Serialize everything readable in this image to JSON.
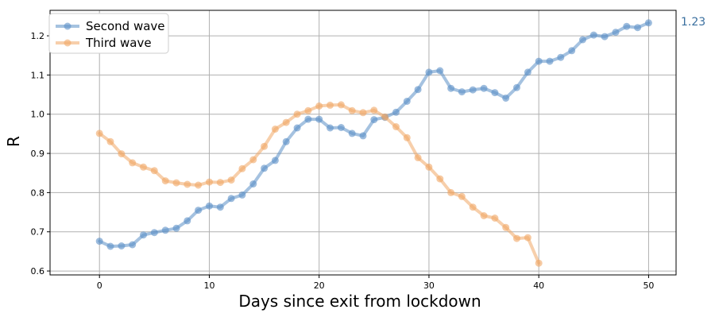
{
  "chart_data": {
    "type": "line",
    "title": "",
    "xlabel": "Days since exit from lockdown",
    "ylabel": "R",
    "xlim": [
      -4.5,
      52.5
    ],
    "ylim": [
      0.59,
      1.265
    ],
    "xticks": [
      0,
      10,
      20,
      30,
      40,
      50
    ],
    "yticks": [
      0.6,
      0.7,
      0.8,
      0.9,
      1.0,
      1.1,
      1.2
    ],
    "grid": true,
    "legend": "top-left",
    "annotation": {
      "text": "1.23",
      "color": "#3a6f9f"
    },
    "series": [
      {
        "name": "Second wave",
        "color": "#5b8fc7",
        "x": [
          0,
          1,
          2,
          3,
          4,
          5,
          6,
          7,
          8,
          9,
          10,
          11,
          12,
          13,
          14,
          15,
          16,
          17,
          18,
          19,
          20,
          21,
          22,
          23,
          24,
          25,
          26,
          27,
          28,
          29,
          30,
          31,
          32,
          33,
          34,
          35,
          36,
          37,
          38,
          39,
          40,
          41,
          42,
          43,
          44,
          45,
          46,
          47,
          48,
          49,
          50
        ],
        "values": [
          0.676,
          0.663,
          0.664,
          0.667,
          0.692,
          0.698,
          0.704,
          0.709,
          0.728,
          0.755,
          0.766,
          0.763,
          0.785,
          0.794,
          0.822,
          0.862,
          0.882,
          0.93,
          0.965,
          0.987,
          0.987,
          0.965,
          0.966,
          0.951,
          0.945,
          0.986,
          0.992,
          1.005,
          1.033,
          1.063,
          1.107,
          1.111,
          1.066,
          1.057,
          1.062,
          1.066,
          1.055,
          1.041,
          1.068,
          1.107,
          1.135,
          1.135,
          1.145,
          1.162,
          1.19,
          1.202,
          1.198,
          1.209,
          1.224,
          1.221,
          1.233
        ]
      },
      {
        "name": "Third wave",
        "color": "#f0a766",
        "x": [
          0,
          1,
          2,
          3,
          4,
          5,
          6,
          7,
          8,
          9,
          10,
          11,
          12,
          13,
          14,
          15,
          16,
          17,
          18,
          19,
          20,
          21,
          22,
          23,
          24,
          25,
          26,
          27,
          28,
          29,
          30,
          31,
          32,
          33,
          34,
          35,
          36,
          37,
          38,
          39,
          40
        ],
        "values": [
          0.951,
          0.93,
          0.899,
          0.876,
          0.865,
          0.856,
          0.83,
          0.825,
          0.821,
          0.819,
          0.827,
          0.826,
          0.832,
          0.861,
          0.884,
          0.918,
          0.962,
          0.979,
          1.0,
          1.009,
          1.021,
          1.023,
          1.024,
          1.009,
          1.004,
          1.01,
          0.993,
          0.968,
          0.94,
          0.889,
          0.865,
          0.835,
          0.8,
          0.79,
          0.763,
          0.741,
          0.735,
          0.711,
          0.683,
          0.685,
          0.62
        ]
      }
    ]
  }
}
